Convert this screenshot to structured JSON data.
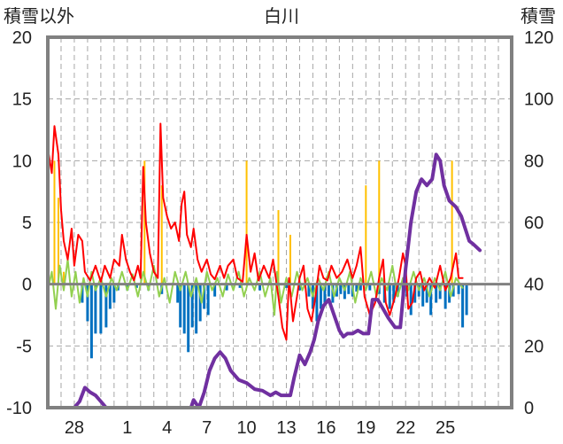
{
  "chart_data": {
    "type": "line",
    "title": "白川",
    "left_axis_label": "積雪以外",
    "right_axis_label": "積雪",
    "y_left": {
      "min": -10,
      "max": 20,
      "step": 5,
      "ticks": [
        "-10",
        "-5",
        "0",
        "5",
        "10",
        "15",
        "20"
      ]
    },
    "y_right": {
      "min": 0,
      "max": 120,
      "step": 20,
      "ticks": [
        "0",
        "20",
        "40",
        "60",
        "80",
        "100",
        "120"
      ]
    },
    "x_range": [
      26.0,
      61.0
    ],
    "x_ticks": [
      {
        "x": 28,
        "label": "28"
      },
      {
        "x": 32,
        "label": "1"
      },
      {
        "x": 35,
        "label": "4"
      },
      {
        "x": 38,
        "label": "7"
      },
      {
        "x": 41,
        "label": "10"
      },
      {
        "x": 44,
        "label": "13"
      },
      {
        "x": 47,
        "label": "16"
      },
      {
        "x": 50,
        "label": "19"
      },
      {
        "x": 53,
        "label": "22"
      },
      {
        "x": 56,
        "label": "25"
      }
    ],
    "colors": {
      "frame": "#808080",
      "grid": "#a6a6a6",
      "red": "#ff0000",
      "green": "#92d050",
      "yellow": "#ffc000",
      "blue": "#0070c0",
      "purple": "#7030a0"
    },
    "red_line": [
      [
        26.0,
        11.0
      ],
      [
        26.3,
        9.0
      ],
      [
        26.5,
        12.8
      ],
      [
        26.8,
        10.5
      ],
      [
        27.0,
        6.0
      ],
      [
        27.2,
        3.5
      ],
      [
        27.5,
        2.0
      ],
      [
        27.8,
        4.5
      ],
      [
        28.0,
        1.5
      ],
      [
        28.3,
        4.0
      ],
      [
        28.6,
        3.5
      ],
      [
        28.8,
        1.0
      ],
      [
        29.2,
        0.3
      ],
      [
        29.6,
        1.5
      ],
      [
        30.0,
        0.2
      ],
      [
        30.3,
        1.5
      ],
      [
        30.7,
        0.5
      ],
      [
        31.0,
        2.0
      ],
      [
        31.4,
        1.5
      ],
      [
        31.6,
        4.0
      ],
      [
        31.9,
        2.0
      ],
      [
        32.2,
        1.0
      ],
      [
        32.5,
        0.3
      ],
      [
        32.8,
        1.5
      ],
      [
        33.0,
        0.5
      ],
      [
        33.2,
        9.5
      ],
      [
        33.4,
        5.0
      ],
      [
        33.7,
        2.5
      ],
      [
        34.0,
        1.0
      ],
      [
        34.3,
        0.5
      ],
      [
        34.5,
        13.0
      ],
      [
        34.7,
        7.0
      ],
      [
        35.0,
        5.5
      ],
      [
        35.3,
        4.5
      ],
      [
        35.6,
        5.0
      ],
      [
        35.9,
        3.5
      ],
      [
        36.1,
        6.5
      ],
      [
        36.3,
        7.5
      ],
      [
        36.5,
        4.0
      ],
      [
        36.8,
        3.0
      ],
      [
        37.0,
        4.5
      ],
      [
        37.3,
        2.0
      ],
      [
        37.6,
        1.0
      ],
      [
        38.0,
        2.0
      ],
      [
        38.3,
        0.8
      ],
      [
        38.6,
        0.4
      ],
      [
        39.0,
        1.5
      ],
      [
        39.3,
        0.5
      ],
      [
        39.6,
        1.5
      ],
      [
        40.0,
        2.0
      ],
      [
        40.3,
        0.5
      ],
      [
        40.7,
        0.2
      ],
      [
        41.0,
        4.0
      ],
      [
        41.3,
        1.0
      ],
      [
        41.6,
        2.5
      ],
      [
        41.9,
        0.3
      ],
      [
        42.3,
        1.5
      ],
      [
        42.7,
        0.5
      ],
      [
        43.0,
        2.0
      ],
      [
        43.4,
        -1.0
      ],
      [
        43.7,
        -3.5
      ],
      [
        44.0,
        -4.5
      ],
      [
        44.2,
        0.5
      ],
      [
        44.5,
        -3.0
      ],
      [
        44.8,
        -1.0
      ],
      [
        45.0,
        0.5
      ],
      [
        45.3,
        1.5
      ],
      [
        45.6,
        -2.0
      ],
      [
        45.9,
        -3.0
      ],
      [
        46.2,
        -1.0
      ],
      [
        46.5,
        1.5
      ],
      [
        46.8,
        0.5
      ],
      [
        47.1,
        0.3
      ],
      [
        47.4,
        1.5
      ],
      [
        47.8,
        0.5
      ],
      [
        48.2,
        1.0
      ],
      [
        48.6,
        2.0
      ],
      [
        49.0,
        0.5
      ],
      [
        49.3,
        1.5
      ],
      [
        49.6,
        3.0
      ],
      [
        49.9,
        -1.0
      ],
      [
        50.3,
        -2.5
      ],
      [
        50.7,
        -1.5
      ],
      [
        51.0,
        0.5
      ],
      [
        51.3,
        2.0
      ],
      [
        51.5,
        -1.5
      ],
      [
        51.8,
        -2.5
      ],
      [
        52.2,
        -1.0
      ],
      [
        52.5,
        0.5
      ],
      [
        52.8,
        2.5
      ],
      [
        53.0,
        1.5
      ],
      [
        53.2,
        -2.0
      ],
      [
        53.5,
        -1.5
      ],
      [
        53.8,
        0.5
      ],
      [
        54.1,
        1.0
      ],
      [
        54.4,
        -0.5
      ],
      [
        54.8,
        0.5
      ],
      [
        55.2,
        -0.3
      ],
      [
        55.6,
        1.5
      ],
      [
        56.0,
        -0.5
      ],
      [
        56.4,
        0.5
      ],
      [
        56.8,
        2.5
      ],
      [
        57.0,
        0.5
      ],
      [
        57.3,
        0.5
      ]
    ],
    "green_line": [
      [
        26.0,
        -0.5
      ],
      [
        26.3,
        1.0
      ],
      [
        26.6,
        -2.0
      ],
      [
        26.9,
        1.5
      ],
      [
        27.2,
        -0.5
      ],
      [
        27.5,
        2.0
      ],
      [
        27.8,
        -1.0
      ],
      [
        28.1,
        1.0
      ],
      [
        28.4,
        -1.5
      ],
      [
        28.7,
        0.5
      ],
      [
        29.0,
        -1.0
      ],
      [
        29.3,
        1.0
      ],
      [
        29.6,
        -0.5
      ],
      [
        30.0,
        0.5
      ],
      [
        30.4,
        -1.0
      ],
      [
        30.8,
        0.5
      ],
      [
        31.2,
        -0.5
      ],
      [
        31.6,
        1.0
      ],
      [
        32.0,
        -0.5
      ],
      [
        32.4,
        0.8
      ],
      [
        32.8,
        -1.0
      ],
      [
        33.2,
        1.0
      ],
      [
        33.6,
        -0.5
      ],
      [
        34.0,
        1.5
      ],
      [
        34.4,
        -1.0
      ],
      [
        34.8,
        0.5
      ],
      [
        35.2,
        -1.5
      ],
      [
        35.6,
        1.0
      ],
      [
        36.0,
        -0.5
      ],
      [
        36.4,
        1.0
      ],
      [
        36.8,
        -1.0
      ],
      [
        37.2,
        0.5
      ],
      [
        37.6,
        -1.5
      ],
      [
        38.0,
        1.0
      ],
      [
        38.4,
        -0.5
      ],
      [
        38.8,
        0.5
      ],
      [
        39.2,
        -1.0
      ],
      [
        39.6,
        0.8
      ],
      [
        40.0,
        -0.5
      ],
      [
        40.4,
        1.0
      ],
      [
        40.8,
        -1.0
      ],
      [
        41.2,
        0.5
      ],
      [
        41.6,
        -0.5
      ],
      [
        42.0,
        1.0
      ],
      [
        42.4,
        -1.0
      ],
      [
        42.8,
        0.5
      ],
      [
        43.1,
        -2.5
      ],
      [
        43.3,
        1.0
      ],
      [
        43.6,
        -1.5
      ],
      [
        44.0,
        0.5
      ],
      [
        44.4,
        -1.0
      ],
      [
        44.8,
        1.0
      ],
      [
        45.2,
        -0.5
      ],
      [
        45.6,
        0.5
      ],
      [
        46.0,
        -1.0
      ],
      [
        46.4,
        0.5
      ],
      [
        46.8,
        -0.5
      ],
      [
        47.2,
        1.0
      ],
      [
        47.6,
        -1.0
      ],
      [
        48.0,
        0.5
      ],
      [
        48.4,
        -0.5
      ],
      [
        48.8,
        1.0
      ],
      [
        49.2,
        -1.5
      ],
      [
        49.6,
        0.5
      ],
      [
        50.0,
        -0.5
      ],
      [
        50.4,
        1.0
      ],
      [
        50.8,
        -1.0
      ],
      [
        51.2,
        0.5
      ],
      [
        51.6,
        -0.5
      ],
      [
        52.0,
        1.5
      ],
      [
        52.4,
        -1.0
      ],
      [
        52.8,
        0.5
      ],
      [
        53.2,
        -0.5
      ],
      [
        53.6,
        1.0
      ],
      [
        54.0,
        -0.5
      ],
      [
        54.4,
        0.5
      ],
      [
        54.8,
        -1.0
      ],
      [
        55.2,
        0.5
      ],
      [
        55.6,
        -0.5
      ],
      [
        56.0,
        1.0
      ],
      [
        56.4,
        -1.0
      ],
      [
        56.8,
        0.5
      ],
      [
        57.3,
        -0.3
      ]
    ],
    "purple_line": [
      [
        26.0,
        0.0
      ],
      [
        28.0,
        0.0
      ],
      [
        28.4,
        2.0
      ],
      [
        28.8,
        6.5
      ],
      [
        29.2,
        5.0
      ],
      [
        29.6,
        4.0
      ],
      [
        30.0,
        2.0
      ],
      [
        30.4,
        0.0
      ],
      [
        36.8,
        0.0
      ],
      [
        37.0,
        2.5
      ],
      [
        37.4,
        0.0
      ],
      [
        37.8,
        5.0
      ],
      [
        38.2,
        12.0
      ],
      [
        38.6,
        16.0
      ],
      [
        39.0,
        18.0
      ],
      [
        39.4,
        16.0
      ],
      [
        39.8,
        12.0
      ],
      [
        40.4,
        9.0
      ],
      [
        41.0,
        8.0
      ],
      [
        41.6,
        6.0
      ],
      [
        42.2,
        5.5
      ],
      [
        42.8,
        4.0
      ],
      [
        43.2,
        5.0
      ],
      [
        43.6,
        4.0
      ],
      [
        44.3,
        4.0
      ],
      [
        44.6,
        10.0
      ],
      [
        45.0,
        17.0
      ],
      [
        45.4,
        14.0
      ],
      [
        45.8,
        18.0
      ],
      [
        46.1,
        22.0
      ],
      [
        46.4,
        28.0
      ],
      [
        46.8,
        33.0
      ],
      [
        47.2,
        35.0
      ],
      [
        47.6,
        30.0
      ],
      [
        48.0,
        25.0
      ],
      [
        48.3,
        23.0
      ],
      [
        48.6,
        24.0
      ],
      [
        49.0,
        24.0
      ],
      [
        49.4,
        25.0
      ],
      [
        49.8,
        24.0
      ],
      [
        50.2,
        24.0
      ],
      [
        50.5,
        35.0
      ],
      [
        50.9,
        35.0
      ],
      [
        51.3,
        32.0
      ],
      [
        51.7,
        29.0
      ],
      [
        52.2,
        26.0
      ],
      [
        52.6,
        26.0
      ],
      [
        53.0,
        45.0
      ],
      [
        53.4,
        60.0
      ],
      [
        53.8,
        70.0
      ],
      [
        54.2,
        74.0
      ],
      [
        54.6,
        72.0
      ],
      [
        55.0,
        74.0
      ],
      [
        55.3,
        82.0
      ],
      [
        55.6,
        80.0
      ],
      [
        55.9,
        72.0
      ],
      [
        56.3,
        67.0
      ],
      [
        56.8,
        65.0
      ],
      [
        57.2,
        62.0
      ],
      [
        57.5,
        58.0
      ],
      [
        57.8,
        54.0
      ],
      [
        58.1,
        53.0
      ],
      [
        58.6,
        51.0
      ]
    ],
    "yellow_bars": [
      [
        26.5,
        10.0
      ],
      [
        26.8,
        7.0
      ],
      [
        27.2,
        1.0
      ],
      [
        33.3,
        10.0
      ],
      [
        34.6,
        8.0
      ],
      [
        41.0,
        10.0
      ],
      [
        43.4,
        6.0
      ],
      [
        44.3,
        4.0
      ],
      [
        50.0,
        8.0
      ],
      [
        51.0,
        10.0
      ],
      [
        56.5,
        10.0
      ]
    ],
    "blue_bars": [
      [
        28.6,
        -1.5
      ],
      [
        29.0,
        -3.0
      ],
      [
        29.3,
        -6.0
      ],
      [
        29.6,
        -4.0
      ],
      [
        30.0,
        -4.0
      ],
      [
        30.4,
        -3.5
      ],
      [
        30.7,
        -2.0
      ],
      [
        31.0,
        -1.5
      ],
      [
        31.3,
        -0.5
      ],
      [
        32.0,
        -0.5
      ],
      [
        32.7,
        -0.3
      ],
      [
        33.6,
        -0.5
      ],
      [
        34.6,
        -0.8
      ],
      [
        35.8,
        -1.5
      ],
      [
        36.0,
        -3.5
      ],
      [
        36.3,
        -4.0
      ],
      [
        36.6,
        -5.5
      ],
      [
        36.9,
        -3.5
      ],
      [
        37.2,
        -4.0
      ],
      [
        37.5,
        -3.0
      ],
      [
        37.8,
        -2.0
      ],
      [
        38.1,
        -2.5
      ],
      [
        38.6,
        -1.0
      ],
      [
        39.5,
        -0.5
      ],
      [
        40.5,
        -0.3
      ],
      [
        42.0,
        -0.5
      ],
      [
        44.0,
        -0.3
      ],
      [
        45.0,
        -0.5
      ],
      [
        45.7,
        -1.0
      ],
      [
        46.0,
        -2.0
      ],
      [
        46.3,
        -3.0
      ],
      [
        46.6,
        -2.0
      ],
      [
        46.9,
        -1.5
      ],
      [
        47.2,
        -1.0
      ],
      [
        47.5,
        -1.5
      ],
      [
        47.8,
        -1.0
      ],
      [
        48.1,
        -0.8
      ],
      [
        48.4,
        -1.2
      ],
      [
        48.7,
        -0.8
      ],
      [
        49.0,
        -1.0
      ],
      [
        49.3,
        -0.6
      ],
      [
        49.6,
        -0.5
      ],
      [
        50.3,
        -0.5
      ],
      [
        51.0,
        -0.8
      ],
      [
        51.4,
        -1.5
      ],
      [
        51.8,
        -2.0
      ],
      [
        52.1,
        -1.5
      ],
      [
        52.4,
        -1.0
      ],
      [
        52.8,
        -0.8
      ],
      [
        53.1,
        -1.0
      ],
      [
        53.4,
        -2.5
      ],
      [
        53.7,
        -1.5
      ],
      [
        54.0,
        -1.0
      ],
      [
        54.3,
        -1.8
      ],
      [
        54.6,
        -1.5
      ],
      [
        54.9,
        -2.5
      ],
      [
        55.3,
        -1.5
      ],
      [
        55.6,
        -1.2
      ],
      [
        56.0,
        -2.0
      ],
      [
        56.3,
        -1.5
      ],
      [
        56.6,
        -1.0
      ],
      [
        57.0,
        -0.8
      ],
      [
        57.3,
        -3.5
      ],
      [
        57.6,
        -2.5
      ]
    ]
  }
}
